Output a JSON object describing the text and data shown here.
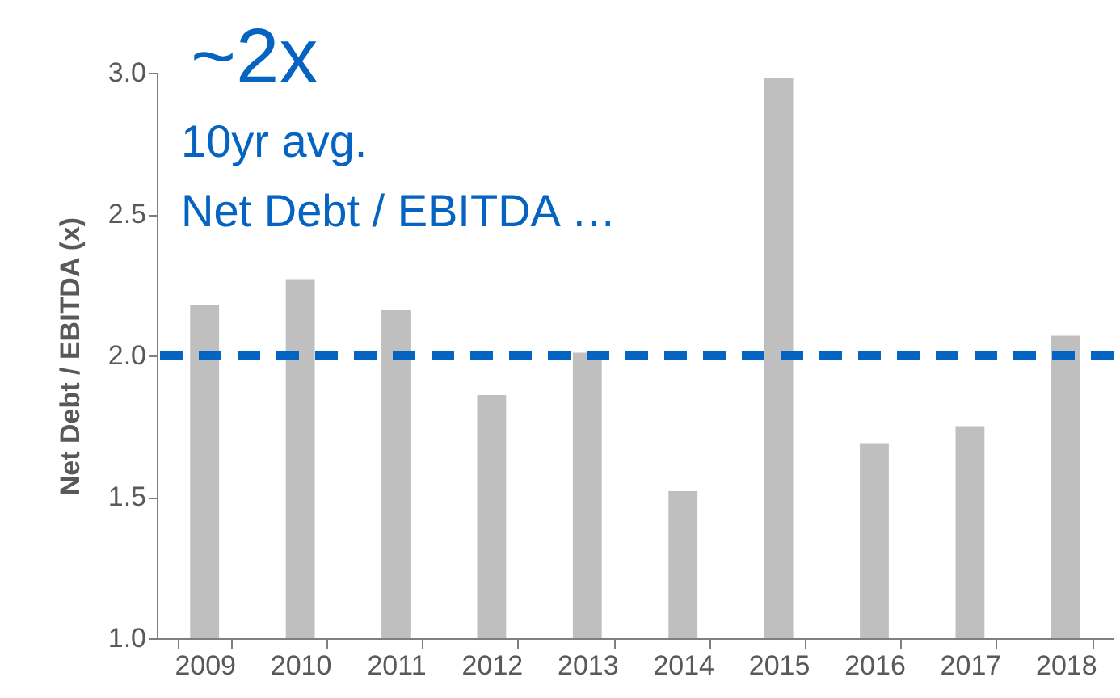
{
  "chart_data": {
    "type": "bar",
    "ylabel": "Net Debt / EBITDA (x)",
    "categories": [
      "2009",
      "2010",
      "2011",
      "2012",
      "2013",
      "2014",
      "2015",
      "2016",
      "2017",
      "2018"
    ],
    "values": [
      2.18,
      2.27,
      2.16,
      1.86,
      2.01,
      1.52,
      2.98,
      1.69,
      1.75,
      2.07
    ],
    "color": "#bfbfbf",
    "ylim": [
      1,
      3
    ],
    "yticks": [
      {
        "value": 1,
        "label": "1.0"
      },
      1.5,
      {
        "value": 2,
        "label": "2.0"
      },
      2.5,
      {
        "value": 3,
        "label": "3.0"
      }
    ],
    "ref_lines": [
      {
        "axis": "y",
        "value": 2,
        "color": "#0563c1",
        "line_style": "dashed"
      }
    ],
    "annotations": [
      "~2x",
      "10yr avg.",
      "Net Debt / EBITDA …"
    ],
    "grid": false
  }
}
